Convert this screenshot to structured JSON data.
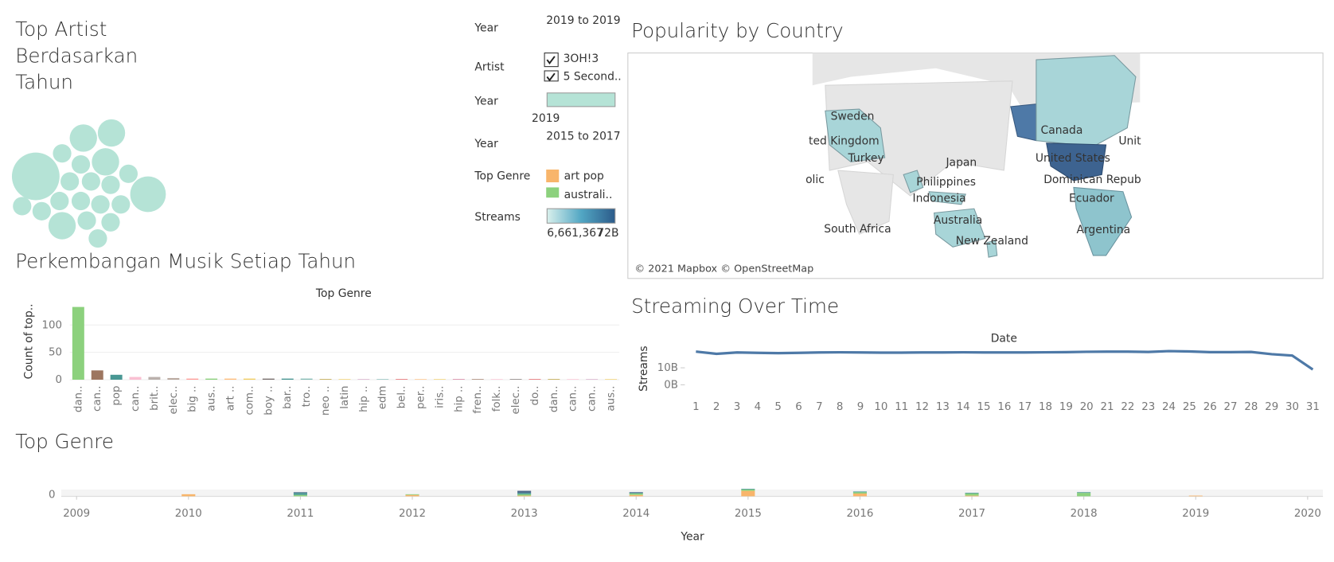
{
  "chart_data": [
    {
      "type": "bubble",
      "title": "Top Artist Berdasarkan Tahun",
      "color": "#b5e3d6",
      "values": [
        100,
        56,
        33,
        33,
        33,
        33,
        15,
        15,
        15,
        15,
        15,
        15,
        15,
        15,
        15,
        15,
        15,
        15,
        15,
        15,
        15
      ]
    },
    {
      "type": "bar",
      "title": "Perkembangan Musik Setiap Tahun",
      "x_label": "Top Genre",
      "y_label": "Count of top..",
      "categories": [
        "dan..",
        "can..",
        "pop",
        "can..",
        "brit..",
        "elec..",
        "big ..",
        "aus..",
        "art ..",
        "com..",
        "boy ..",
        "bar..",
        "tro..",
        "neo ..",
        "latin",
        "hip ..",
        "edm",
        "bel..",
        "per..",
        "iris..",
        "hip ..",
        "fren..",
        "folk..",
        "elec..",
        "do..",
        "dan..",
        "can..",
        "can..",
        "aus.."
      ],
      "values": [
        133,
        17,
        9,
        5,
        5,
        3,
        2,
        2,
        2,
        2,
        2,
        2,
        2,
        1,
        1,
        1,
        1,
        1,
        1,
        1,
        1,
        1,
        1,
        1,
        1,
        1,
        1,
        1,
        1
      ],
      "colors": [
        "#8cd17d",
        "#9d7660",
        "#499894",
        "#fabfd2",
        "#bab0ac",
        "#b9a9a0",
        "#ff9d9a",
        "#8cd17d",
        "#ffbe7d",
        "#f1ce63",
        "#79706e",
        "#499894",
        "#86bcb6",
        "#b6992d",
        "#f1ce63",
        "#d4a6c8",
        "#86bcb6",
        "#e15759",
        "#ffbe7d",
        "#f1ce63",
        "#d37295",
        "#9d7660",
        "#fabfd2",
        "#79706e",
        "#e15759",
        "#b6992d",
        "#fabfd2",
        "#d4a6c8",
        "#f1ce63"
      ],
      "ylim": [
        0,
        140
      ],
      "yticks": [
        0,
        50,
        100
      ],
      "grid": true
    },
    {
      "type": "line",
      "title": "Streaming Over Time",
      "x_label": "Date",
      "y_label": "Streams",
      "color": "#4e79a7",
      "categories": [
        "1",
        "2",
        "3",
        "4",
        "5",
        "6",
        "7",
        "8",
        "9",
        "10",
        "11",
        "12",
        "13",
        "14",
        "15",
        "16",
        "17",
        "18",
        "19",
        "20",
        "21",
        "22",
        "23",
        "24",
        "25",
        "26",
        "27",
        "28",
        "29",
        "30",
        "31"
      ],
      "values": [
        19500000000,
        18200000000,
        19000000000,
        18800000000,
        18600000000,
        18800000000,
        19000000000,
        19100000000,
        19000000000,
        18900000000,
        18900000000,
        19000000000,
        19000000000,
        19100000000,
        19000000000,
        19000000000,
        19000000000,
        19100000000,
        19200000000,
        19400000000,
        19500000000,
        19500000000,
        19300000000,
        19800000000,
        19600000000,
        19200000000,
        19200000000,
        19300000000,
        18000000000,
        17200000000,
        9000000000
      ],
      "ylim": [
        0,
        23500000000
      ],
      "yticks": [
        {
          "value": 0,
          "label": "0B"
        },
        {
          "value": 10000000000,
          "label": "10B"
        }
      ]
    },
    {
      "type": "stacked",
      "title": "Top Genre",
      "x_label": "Year",
      "x": [
        2010,
        2011,
        2012,
        2013,
        2014,
        2015,
        2016,
        2017,
        2018,
        2019
      ],
      "series": [
        {
          "color": "#f8b56b",
          "values": [
            3,
            0,
            2,
            1,
            2,
            8,
            4,
            1,
            0,
            1
          ]
        },
        {
          "color": "#8cd17d",
          "values": [
            0,
            2,
            1,
            2,
            2,
            2,
            2,
            3,
            5,
            0
          ]
        },
        {
          "color": "#499894",
          "values": [
            0,
            3,
            0,
            2,
            1,
            1,
            1,
            1,
            1,
            0
          ]
        },
        {
          "color": "#4e6a8a",
          "values": [
            0,
            1,
            0,
            3,
            1,
            0,
            0,
            0,
            0,
            0
          ]
        }
      ],
      "xlim": [
        2009,
        2020
      ],
      "xticks": [
        2009,
        2010,
        2011,
        2012,
        2013,
        2014,
        2015,
        2016,
        2017,
        2018,
        2019,
        2020
      ],
      "ylim": [
        0,
        30
      ],
      "yticks": [
        0
      ]
    }
  ],
  "filters": [
    {
      "label": "Year",
      "value": "2019 to 2019"
    },
    {
      "label": "Artist",
      "items": [
        "3OH!3",
        "5 Second.."
      ]
    },
    {
      "label": "Year",
      "value": "2019"
    },
    {
      "label": "Year",
      "value": "2015 to 2017"
    },
    {
      "label": "Top Genre",
      "items": [
        {
          "name": "art pop",
          "color": "#f8b56b"
        },
        {
          "name": "australi..",
          "color": "#8cd17d"
        }
      ]
    },
    {
      "label": "Streams",
      "range": [
        "6,661,367",
        "72B"
      ]
    }
  ],
  "map": {
    "title": "Popularity by Country",
    "labels": [
      "Sweden",
      "ted Kingdom",
      "Turkey",
      "olic",
      "Japan",
      "Philippines",
      "Indonesia",
      "Australia",
      "New Zealand",
      "South Africa",
      "Canada",
      "Unit",
      "United States",
      "Dominican Repub",
      "Ecuador",
      "Argentina"
    ],
    "attribution": "© 2021 Mapbox © OpenStreetMap"
  }
}
